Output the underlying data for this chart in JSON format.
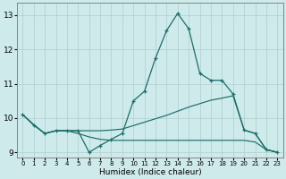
{
  "xlabel": "Humidex (Indice chaleur)",
  "bg_color": "#ceeaea",
  "grid_color": "#aecece",
  "line_color": "#1a6e6a",
  "xlim": [
    -0.5,
    23.5
  ],
  "ylim": [
    8.85,
    13.35
  ],
  "yticks": [
    9,
    10,
    11,
    12,
    13
  ],
  "xticks": [
    0,
    1,
    2,
    3,
    4,
    5,
    6,
    7,
    8,
    9,
    10,
    11,
    12,
    13,
    14,
    15,
    16,
    17,
    18,
    19,
    20,
    21,
    22,
    23
  ],
  "line1_x": [
    0,
    1,
    2,
    3,
    4,
    5,
    6,
    7,
    8,
    9,
    10,
    11,
    12,
    13,
    14,
    15,
    16,
    17,
    18,
    19,
    20,
    21,
    22,
    23
  ],
  "line1_y": [
    10.1,
    9.8,
    9.55,
    9.63,
    9.63,
    9.63,
    9.0,
    9.2,
    9.38,
    9.55,
    10.5,
    10.78,
    11.75,
    12.55,
    13.05,
    12.6,
    11.3,
    11.1,
    11.1,
    10.7,
    9.65,
    9.55,
    9.08,
    9.0
  ],
  "line2_x": [
    0,
    1,
    2,
    3,
    4,
    5,
    6,
    7,
    8,
    9,
    10,
    11,
    12,
    13,
    14,
    15,
    16,
    17,
    18,
    19,
    20,
    21,
    22,
    23
  ],
  "line2_y": [
    10.1,
    9.8,
    9.55,
    9.63,
    9.63,
    9.63,
    9.63,
    9.63,
    9.65,
    9.68,
    9.78,
    9.88,
    9.98,
    10.08,
    10.2,
    10.32,
    10.42,
    10.52,
    10.58,
    10.65,
    9.65,
    9.55,
    9.08,
    9.0
  ],
  "line3_x": [
    0,
    1,
    2,
    3,
    4,
    5,
    6,
    7,
    8,
    9,
    10,
    11,
    12,
    13,
    14,
    15,
    16,
    17,
    18,
    19,
    20,
    21,
    22,
    23
  ],
  "line3_y": [
    10.1,
    9.8,
    9.55,
    9.63,
    9.63,
    9.55,
    9.45,
    9.38,
    9.35,
    9.35,
    9.35,
    9.35,
    9.35,
    9.35,
    9.35,
    9.35,
    9.35,
    9.35,
    9.35,
    9.35,
    9.35,
    9.3,
    9.08,
    9.0
  ]
}
